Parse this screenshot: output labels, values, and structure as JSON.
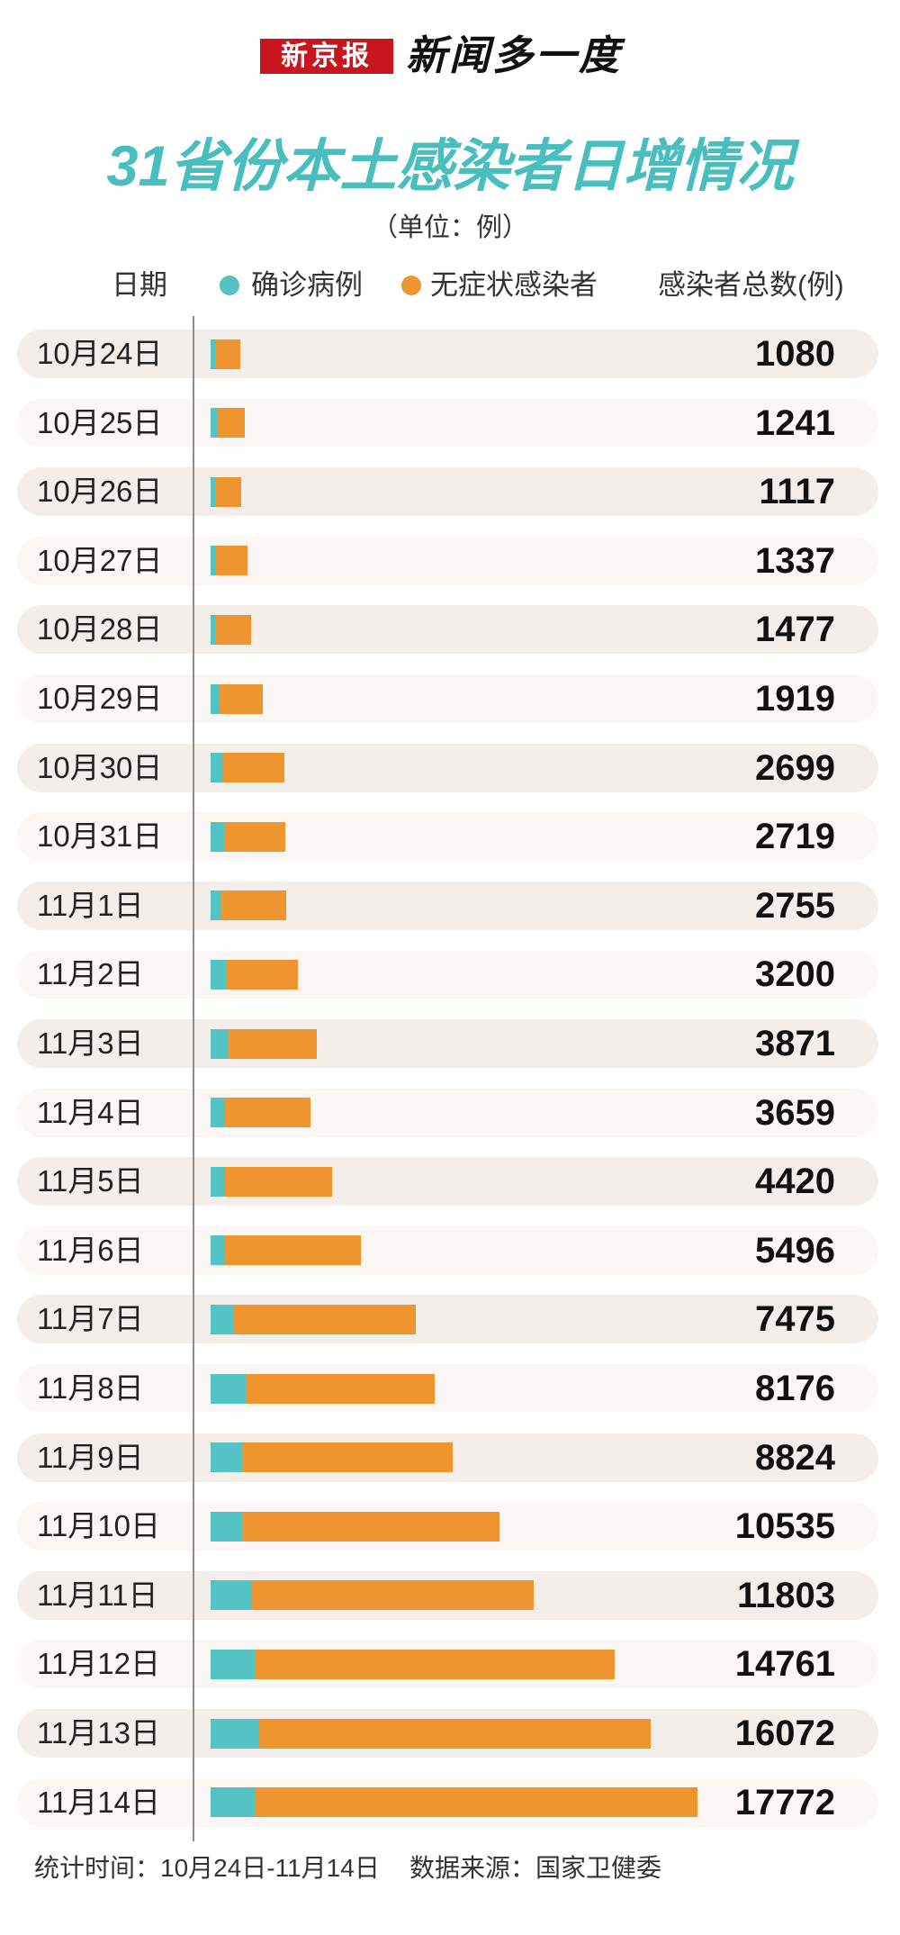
{
  "header": {
    "logo_text": "新京报",
    "brand_text": "新闻多一度"
  },
  "chart_data": {
    "type": "bar",
    "orientation": "horizontal",
    "stacked": true,
    "title": "31省份本土感染者日增情况",
    "subtitle": "（单位：例）",
    "category_header": "日期",
    "total_header": "感染者总数(例)",
    "legend": "top",
    "grid": false,
    "categories": [
      "10月24日",
      "10月25日",
      "10月26日",
      "10月27日",
      "10月28日",
      "10月29日",
      "10月30日",
      "10月31日",
      "11月1日",
      "11月2日",
      "11月3日",
      "11月4日",
      "11月5日",
      "11月6日",
      "11月7日",
      "11月8日",
      "11月9日",
      "11月10日",
      "11月11日",
      "11月12日",
      "11月13日",
      "11月14日"
    ],
    "series": [
      {
        "name": "确诊病例",
        "color": "#53c3c3",
        "values": [
          168,
          229,
          162,
          200,
          202,
          332,
          418,
          477,
          394,
          544,
          648,
          539,
          517,
          538,
          819,
          1280,
          1141,
          1140,
          1504,
          1624,
          1745,
          1604
        ]
      },
      {
        "name": "无症状感染者",
        "color": "#ef9530",
        "values": [
          912,
          1012,
          955,
          1137,
          1275,
          1587,
          2281,
          2242,
          2361,
          2656,
          3223,
          3120,
          3903,
          4958,
          6656,
          6896,
          7683,
          9395,
          10299,
          13137,
          14327,
          16168
        ]
      }
    ],
    "totals": [
      1080,
      1241,
      1117,
      1337,
      1477,
      1919,
      2699,
      2719,
      2755,
      3200,
      3871,
      3659,
      4420,
      5496,
      7475,
      8176,
      8824,
      10535,
      11803,
      14761,
      16072,
      17772
    ]
  },
  "footer": {
    "period": "统计时间：10月24日-11月14日",
    "source": "数据来源：国家卫健委"
  }
}
